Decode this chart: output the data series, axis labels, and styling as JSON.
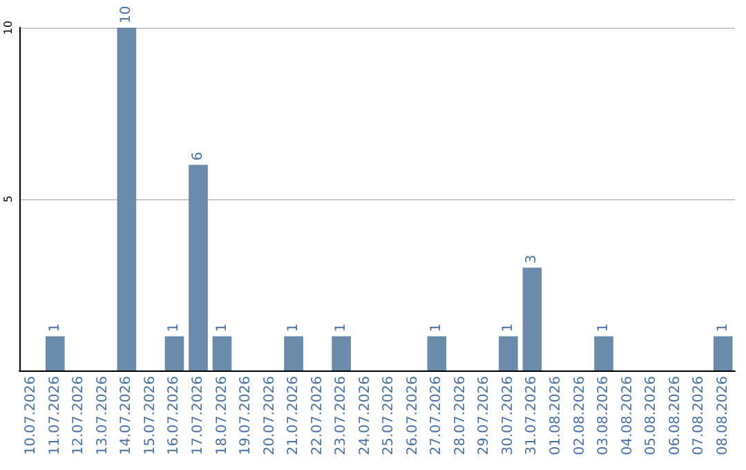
{
  "chart_data": {
    "type": "bar",
    "categories": [
      "10.07.2026",
      "11.07.2026",
      "12.07.2026",
      "13.07.2026",
      "14.07.2026",
      "15.07.2026",
      "16.07.2026",
      "17.07.2026",
      "18.07.2026",
      "19.07.2026",
      "20.07.2026",
      "21.07.2026",
      "22.07.2026",
      "23.07.2026",
      "24.07.2026",
      "25.07.2026",
      "26.07.2026",
      "27.07.2026",
      "28.07.2026",
      "29.07.2026",
      "30.07.2026",
      "31.07.2026",
      "01.08.2026",
      "02.08.2026",
      "03.08.2026",
      "04.08.2026",
      "05.08.2026",
      "06.08.2026",
      "07.08.2026",
      "08.08.2026"
    ],
    "values": [
      0,
      1,
      0,
      0,
      10,
      0,
      1,
      6,
      1,
      0,
      0,
      1,
      0,
      1,
      0,
      0,
      0,
      1,
      0,
      0,
      1,
      3,
      0,
      0,
      1,
      0,
      0,
      0,
      0,
      1
    ],
    "value_labels": [
      null,
      "1",
      null,
      null,
      "10",
      null,
      "1",
      "6",
      "1",
      null,
      null,
      "1",
      null,
      "1",
      null,
      null,
      null,
      "1",
      null,
      null,
      "1",
      "3",
      null,
      null,
      "1",
      null,
      null,
      null,
      null,
      "1"
    ],
    "color": "#6b8bab",
    "ylim": [
      0,
      10
    ],
    "yticks": [
      5,
      10
    ],
    "grid": "y"
  }
}
